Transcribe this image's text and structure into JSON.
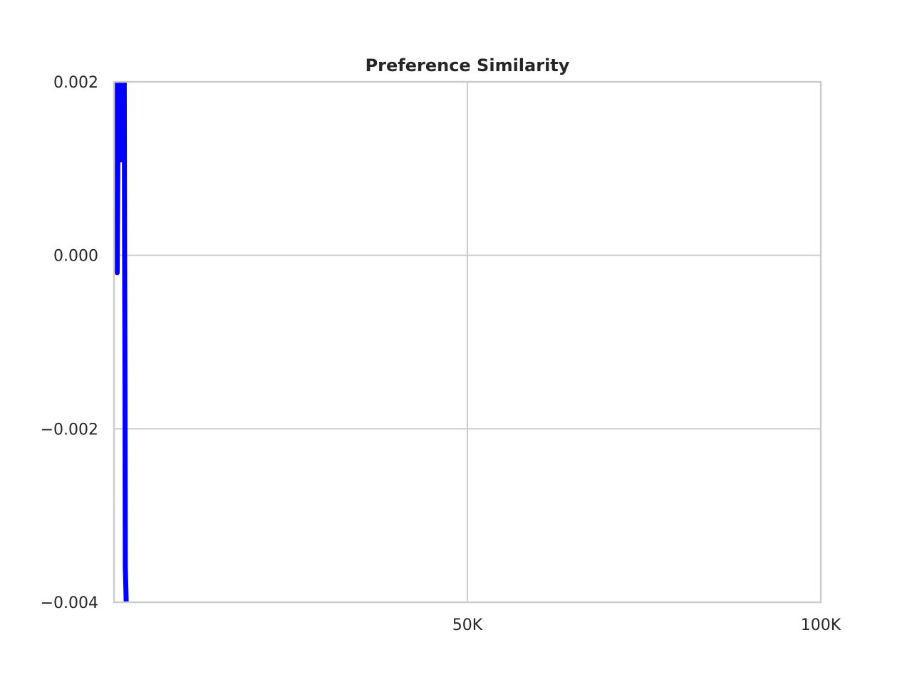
{
  "chart_data": {
    "type": "line",
    "title": "Preference Similarity",
    "xlabel": "",
    "ylabel": "",
    "xlim": [
      0,
      100000
    ],
    "ylim": [
      -0.004,
      0.002
    ],
    "x_ticks": [
      {
        "value": 50000,
        "label": "50K"
      },
      {
        "value": 100000,
        "label": "100K"
      }
    ],
    "y_ticks": [
      {
        "value": 0.002,
        "label": "0.002"
      },
      {
        "value": 0.0,
        "label": "0.000"
      },
      {
        "value": -0.002,
        "label": "−0.002"
      },
      {
        "value": -0.004,
        "label": "−0.004"
      }
    ],
    "grid": true,
    "series": [
      {
        "color": "#0000ff",
        "points": [
          {
            "x": 150,
            "y": 0.0021
          },
          {
            "x": 300,
            "y": 0.0018
          },
          {
            "x": 400,
            "y": 0.0009
          },
          {
            "x": 450,
            "y": -0.0002
          },
          {
            "x": 550,
            "y": 0.0012
          },
          {
            "x": 650,
            "y": 0.0021
          },
          {
            "x": 750,
            "y": 0.0016
          },
          {
            "x": 850,
            "y": 0.0021
          },
          {
            "x": 950,
            "y": 0.0011
          },
          {
            "x": 1050,
            "y": 0.0021
          },
          {
            "x": 1150,
            "y": 0.0015
          },
          {
            "x": 1250,
            "y": 0.0021
          },
          {
            "x": 1350,
            "y": 0.0014
          },
          {
            "x": 1450,
            "y": 0.0021
          },
          {
            "x": 1500,
            "y": 0.0001
          },
          {
            "x": 1550,
            "y": -0.0014
          },
          {
            "x": 1600,
            "y": -0.0036
          },
          {
            "x": 1700,
            "y": -0.0039
          },
          {
            "x": 1750,
            "y": -0.0041
          }
        ]
      }
    ]
  }
}
